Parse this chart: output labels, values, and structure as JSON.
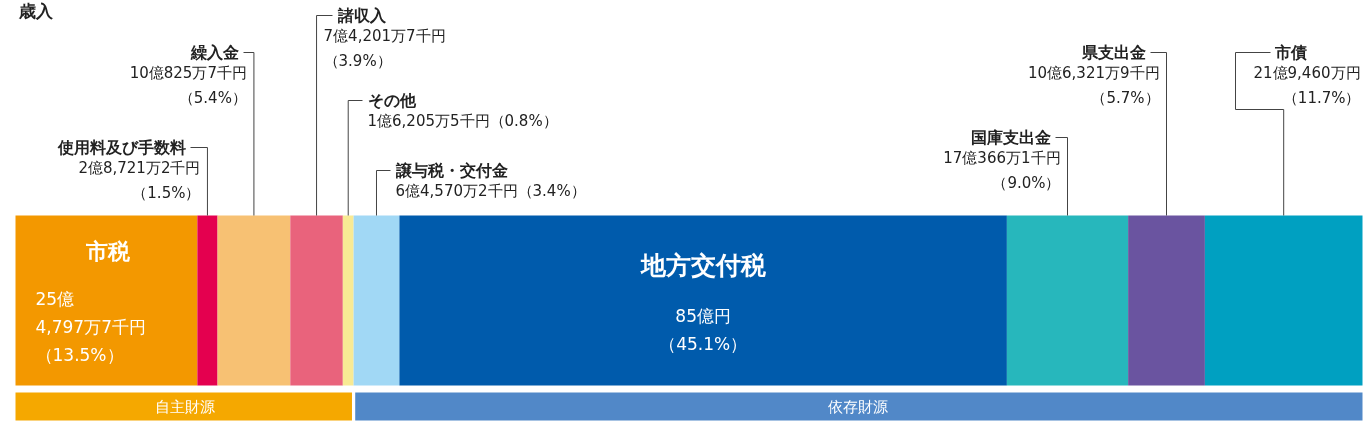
{
  "chart_data": {
    "type": "bar",
    "title": "歳入",
    "orientation": "horizontal",
    "stacked": true,
    "categories": [
      null
    ],
    "xlim": [
      0,
      100
    ],
    "tick_labels": false,
    "series": [
      {
        "name": "市税",
        "color": "#f39800",
        "values": [
          13.5
        ],
        "value_labels": [
          "25億4,797万7千円（13.5%）"
        ]
      },
      {
        "name": "使用料及び手数料",
        "color": "#e4004f",
        "values": [
          1.5
        ],
        "value_labels": [
          "2億8,721万2千円（1.5%）"
        ]
      },
      {
        "name": "繰入金",
        "color": "#f7c173",
        "values": [
          5.4
        ],
        "value_labels": [
          "10億825万7千円（5.4%）"
        ]
      },
      {
        "name": "諸収入",
        "color": "#e9637c",
        "values": [
          3.9
        ],
        "value_labels": [
          "7億4,201万7千円（3.9%）"
        ]
      },
      {
        "name": "その他",
        "color": "#f8ea94",
        "values": [
          0.8
        ],
        "value_labels": [
          "1億6,205万5千円（0.8%）"
        ]
      },
      {
        "name": "譲与税・交付金",
        "color": "#a1d8f5",
        "values": [
          3.4
        ],
        "value_labels": [
          "6億4,570万2千円（3.4%）"
        ]
      },
      {
        "name": "地方交付税",
        "color": "#005bac",
        "values": [
          45.1
        ],
        "value_labels": [
          "85億円（45.1%）"
        ]
      },
      {
        "name": "国庫支出金",
        "color": "#27b7bc",
        "values": [
          9.0
        ],
        "value_labels": [
          "17億366万1千円（9.0%）"
        ]
      },
      {
        "name": "県支出金",
        "color": "#6a54a0",
        "values": [
          5.7
        ],
        "value_labels": [
          "10億6,321万9千円（5.7%）"
        ]
      },
      {
        "name": "市債",
        "color": "#00a0c1",
        "values": [
          11.7
        ],
        "value_labels": [
          "21億9,460万円（11.7%）"
        ]
      }
    ],
    "annotations": [
      "自主財源",
      "依存財源"
    ]
  }
}
